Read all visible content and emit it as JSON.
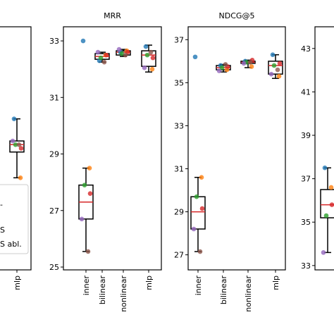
{
  "colors": {
    "series": [
      "#1f77b4",
      "#ff7f0e",
      "#2ca02c",
      "#d62728",
      "#9467bd",
      "#8c564b",
      "#e377c2"
    ],
    "median": "#d62728",
    "box": "#000000"
  },
  "legend": {
    "visible_fragments": [
      "-",
      "S",
      "S abl."
    ]
  },
  "chart_data": [
    {
      "type": "box",
      "title": "",
      "categories": [
        "mlp"
      ],
      "ylim": [
        29.0,
        35.6
      ],
      "yticks": [],
      "boxes": [
        {
          "category": "mlp",
          "whisker_low": 31.5,
          "q1": 32.2,
          "median": 32.4,
          "q3": 32.5,
          "whisker_high": 33.1,
          "points": [
            33.1,
            31.5,
            32.4,
            32.3,
            32.5,
            32.4
          ]
        }
      ]
    },
    {
      "type": "box",
      "title": "MRR",
      "categories": [
        "inner",
        "bilinear",
        "nonlinear",
        "mlp"
      ],
      "ylim": [
        24.9,
        33.5
      ],
      "yticks": [
        "25",
        "27",
        "29",
        "31",
        "33"
      ],
      "boxes": [
        {
          "category": "inner",
          "whisker_low": 25.55,
          "q1": 26.7,
          "median": 27.3,
          "q3": 27.9,
          "whisker_high": 28.5,
          "points": [
            33.0,
            28.5,
            27.9,
            27.6,
            26.7,
            25.55
          ]
        },
        {
          "category": "bilinear",
          "whisker_low": 32.25,
          "q1": 32.35,
          "median": 32.45,
          "q3": 32.55,
          "whisker_high": 32.6,
          "points": [
            32.3,
            32.5,
            32.4,
            32.5,
            32.6,
            32.25
          ]
        },
        {
          "category": "nonlinear",
          "whisker_low": 32.45,
          "q1": 32.5,
          "median": 32.6,
          "q3": 32.65,
          "whisker_high": 32.7,
          "points": [
            32.6,
            32.65,
            32.55,
            32.6,
            32.7,
            32.5
          ]
        },
        {
          "category": "mlp",
          "whisker_low": 31.9,
          "q1": 32.1,
          "median": 32.5,
          "q3": 32.65,
          "whisker_high": 32.85,
          "points": [
            32.8,
            32.0,
            32.5,
            32.4,
            32.05,
            32.6
          ]
        }
      ]
    },
    {
      "type": "box",
      "title": "NDCG@5",
      "categories": [
        "inner",
        "bilinear",
        "nonlinear",
        "mlp"
      ],
      "ylim": [
        26.3,
        37.6
      ],
      "yticks": [
        "27",
        "29",
        "31",
        "33",
        "35",
        "37"
      ],
      "boxes": [
        {
          "category": "inner",
          "whisker_low": 27.15,
          "q1": 28.2,
          "median": 29.0,
          "q3": 29.7,
          "whisker_high": 30.6,
          "points": [
            36.2,
            30.6,
            29.7,
            29.15,
            28.2,
            27.15
          ]
        },
        {
          "category": "bilinear",
          "whisker_low": 35.5,
          "q1": 35.6,
          "median": 35.7,
          "q3": 35.8,
          "whisker_high": 35.85,
          "points": [
            35.8,
            35.6,
            35.7,
            35.75,
            35.55,
            35.85
          ]
        },
        {
          "category": "nonlinear",
          "whisker_low": 35.7,
          "q1": 35.9,
          "median": 35.95,
          "q3": 36.0,
          "whisker_high": 36.05,
          "points": [
            36.0,
            35.75,
            35.95,
            36.05,
            35.9,
            35.95
          ]
        },
        {
          "category": "mlp",
          "whisker_low": 35.2,
          "q1": 35.4,
          "median": 35.8,
          "q3": 36.0,
          "whisker_high": 36.3,
          "points": [
            36.3,
            35.3,
            35.8,
            35.9,
            35.4,
            35.6
          ]
        }
      ]
    },
    {
      "type": "box",
      "title": "",
      "categories": [],
      "ylim": [
        32.8,
        44.0
      ],
      "yticks": [
        "33",
        "35",
        "37",
        "39",
        "41",
        "43"
      ],
      "boxes": [
        {
          "category": "",
          "whisker_low": 33.6,
          "q1": 35.2,
          "median": 35.8,
          "q3": 36.5,
          "whisker_high": 37.5,
          "points": [
            37.5,
            36.6,
            35.3,
            35.8,
            33.6
          ]
        }
      ]
    }
  ]
}
